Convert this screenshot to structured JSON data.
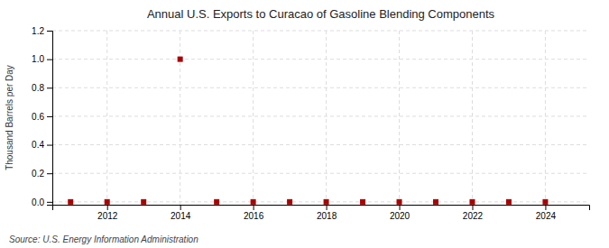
{
  "chart_data": {
    "type": "scatter",
    "title": "Annual U.S. Exports to Curacao of Gasoline Blending Components",
    "y_label": "Thousand Barrels per Day",
    "annotations": [
      "Source: U.S. Energy Information Administration"
    ],
    "x": [
      2011,
      2012,
      2013,
      2014,
      2015,
      2016,
      2017,
      2018,
      2019,
      2020,
      2021,
      2022,
      2023,
      2024
    ],
    "values": [
      0.0,
      0.0,
      0.0,
      1.0,
      0.0,
      0.0,
      0.0,
      0.0,
      0.0,
      0.0,
      0.0,
      0.0,
      0.0,
      0.0
    ],
    "color": "#aa0000",
    "marker": "square",
    "xlim": [
      2010.5,
      2025.2
    ],
    "xticks": [
      2012,
      2014,
      2016,
      2018,
      2020,
      2022,
      2024
    ],
    "ylim": [
      -0.02,
      1.2
    ],
    "yticks": [
      {
        "value": 0.0,
        "label": "0.0"
      },
      0.2,
      0.4,
      0.6,
      0.8,
      {
        "value": 1.0,
        "label": "1.0"
      },
      1.2
    ],
    "grid": true
  }
}
